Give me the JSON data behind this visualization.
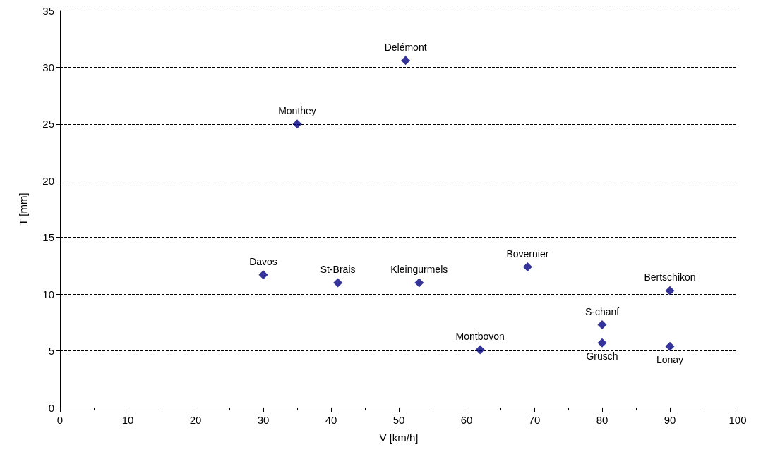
{
  "chart_data": {
    "type": "scatter",
    "xlabel": "V [km/h]",
    "ylabel": "T [mm]",
    "x": [
      30,
      35,
      51,
      41,
      53,
      62,
      69,
      80,
      80,
      90,
      90
    ],
    "series": [
      {
        "color": "#000080",
        "values": [
          11.7,
          25.0,
          30.6,
          11.0,
          11.0,
          5.1,
          12.4,
          7.3,
          5.7,
          10.3,
          5.4
        ]
      }
    ],
    "xlim": [
      0,
      100
    ],
    "xticks": [
      0,
      10,
      20,
      30,
      40,
      50,
      60,
      70,
      80,
      90,
      100
    ],
    "ylim": [
      0,
      35
    ],
    "yticks": [
      0,
      5,
      10,
      15,
      20,
      25,
      30,
      35
    ],
    "grid": "y",
    "marker": "diamond",
    "annotations": [
      {
        "text": "Davos",
        "x": 30,
        "y": 11.7
      },
      {
        "text": "Monthey",
        "x": 35,
        "y": 25.0
      },
      {
        "text": "Delémont",
        "x": 51,
        "y": 30.6
      },
      {
        "text": "St-Brais",
        "x": 41,
        "y": 11.0
      },
      {
        "text": "Kleingurmels",
        "x": 53,
        "y": 11.0
      },
      {
        "text": "Montbovon",
        "x": 62,
        "y": 5.1
      },
      {
        "text": "Bovernier",
        "x": 69,
        "y": 12.4
      },
      {
        "text": "S-chanf",
        "x": 80,
        "y": 7.3
      },
      {
        "text": "Grüsch",
        "x": 80,
        "y": 5.7
      },
      {
        "text": "Bertschikon",
        "x": 90,
        "y": 10.3
      },
      {
        "text": "Lonay",
        "x": 90,
        "y": 5.4
      }
    ]
  }
}
